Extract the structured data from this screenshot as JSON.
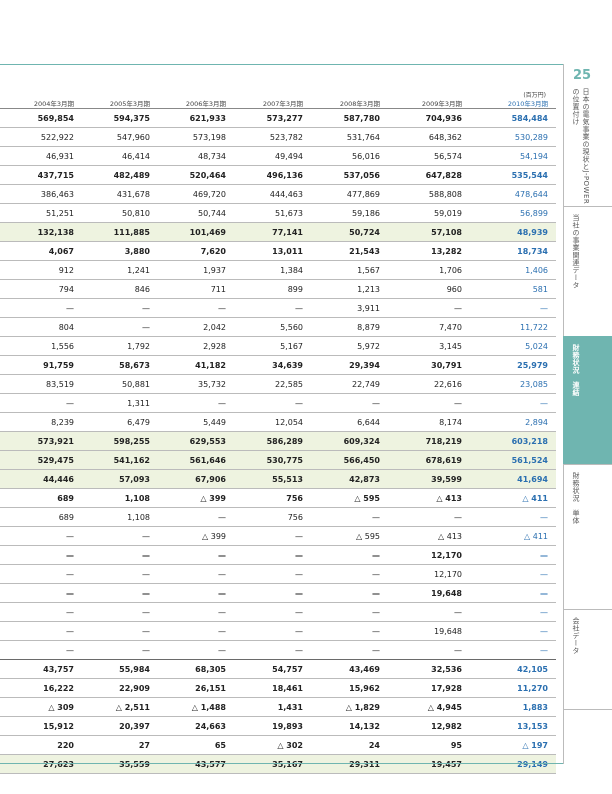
{
  "page_number": "25",
  "unit_label": "(百万円)",
  "sidebar": {
    "sections": [
      {
        "label": "日本の電気事業の現状とJ-POWERの位置付け",
        "active": false
      },
      {
        "label": "当社の事業関連データ",
        "active": false
      },
      {
        "label": "財務状況　連結",
        "active": true
      },
      {
        "label": "財務状況　単体",
        "active": false
      },
      {
        "label": "会社データ",
        "active": false
      }
    ]
  },
  "table": {
    "columns": [
      "2004年3月期",
      "2005年3月期",
      "2006年3月期",
      "2007年3月期",
      "2008年3月期",
      "2009年3月期",
      "2010年3月期"
    ],
    "rows": [
      {
        "style": "bold",
        "values": [
          "569,854",
          "594,375",
          "621,933",
          "573,277",
          "587,780",
          "704,936",
          "584,484"
        ]
      },
      {
        "style": "",
        "values": [
          "522,922",
          "547,960",
          "573,198",
          "523,782",
          "531,764",
          "648,362",
          "530,289"
        ]
      },
      {
        "style": "",
        "values": [
          "46,931",
          "46,414",
          "48,734",
          "49,494",
          "56,016",
          "56,574",
          "54,194"
        ]
      },
      {
        "style": "bold",
        "values": [
          "437,715",
          "482,489",
          "520,464",
          "496,136",
          "537,056",
          "647,828",
          "535,544"
        ]
      },
      {
        "style": "",
        "values": [
          "386,463",
          "431,678",
          "469,720",
          "444,463",
          "477,869",
          "588,808",
          "478,644"
        ]
      },
      {
        "style": "",
        "values": [
          "51,251",
          "50,810",
          "50,744",
          "51,673",
          "59,186",
          "59,019",
          "56,899"
        ]
      },
      {
        "style": "bold shade",
        "values": [
          "132,138",
          "111,885",
          "101,469",
          "77,141",
          "50,724",
          "57,108",
          "48,939"
        ]
      },
      {
        "style": "bold",
        "values": [
          "4,067",
          "3,880",
          "7,620",
          "13,011",
          "21,543",
          "13,282",
          "18,734"
        ]
      },
      {
        "style": "",
        "values": [
          "912",
          "1,241",
          "1,937",
          "1,384",
          "1,567",
          "1,706",
          "1,406"
        ]
      },
      {
        "style": "",
        "values": [
          "794",
          "846",
          "711",
          "899",
          "1,213",
          "960",
          "581"
        ]
      },
      {
        "style": "",
        "values": [
          "—",
          "—",
          "—",
          "—",
          "3,911",
          "—",
          "—"
        ]
      },
      {
        "style": "",
        "values": [
          "804",
          "—",
          "2,042",
          "5,560",
          "8,879",
          "7,470",
          "11,722"
        ]
      },
      {
        "style": "",
        "values": [
          "1,556",
          "1,792",
          "2,928",
          "5,167",
          "5,972",
          "3,145",
          "5,024"
        ]
      },
      {
        "style": "bold",
        "values": [
          "91,759",
          "58,673",
          "41,182",
          "34,639",
          "29,394",
          "30,791",
          "25,979"
        ]
      },
      {
        "style": "",
        "values": [
          "83,519",
          "50,881",
          "35,732",
          "22,585",
          "22,749",
          "22,616",
          "23,085"
        ]
      },
      {
        "style": "",
        "values": [
          "—",
          "1,311",
          "—",
          "—",
          "—",
          "—",
          "—"
        ]
      },
      {
        "style": "",
        "values": [
          "8,239",
          "6,479",
          "5,449",
          "12,054",
          "6,644",
          "8,174",
          "2,894"
        ]
      },
      {
        "style": "bold shade",
        "values": [
          "573,921",
          "598,255",
          "629,553",
          "586,289",
          "609,324",
          "718,219",
          "603,218"
        ]
      },
      {
        "style": "bold shade",
        "values": [
          "529,475",
          "541,162",
          "561,646",
          "530,775",
          "566,450",
          "678,619",
          "561,524"
        ]
      },
      {
        "style": "bold shade",
        "values": [
          "44,446",
          "57,093",
          "67,906",
          "55,513",
          "42,873",
          "39,599",
          "41,694"
        ]
      },
      {
        "style": "bold",
        "values": [
          "689",
          "1,108",
          "△ 399",
          "756",
          "△ 595",
          "△ 413",
          "△ 411"
        ]
      },
      {
        "style": "",
        "values": [
          "689",
          "1,108",
          "—",
          "756",
          "—",
          "—",
          "—"
        ]
      },
      {
        "style": "",
        "values": [
          "—",
          "—",
          "△ 399",
          "—",
          "△ 595",
          "△ 413",
          "△ 411"
        ]
      },
      {
        "style": "bold",
        "values": [
          "—",
          "—",
          "—",
          "—",
          "—",
          "12,170",
          "—"
        ]
      },
      {
        "style": "",
        "values": [
          "—",
          "—",
          "—",
          "—",
          "—",
          "12,170",
          "—"
        ]
      },
      {
        "style": "bold",
        "values": [
          "—",
          "—",
          "—",
          "—",
          "—",
          "19,648",
          "—"
        ]
      },
      {
        "style": "",
        "values": [
          "—",
          "—",
          "—",
          "—",
          "—",
          "—",
          "—"
        ]
      },
      {
        "style": "",
        "values": [
          "—",
          "—",
          "—",
          "—",
          "—",
          "19,648",
          "—"
        ]
      },
      {
        "style": "sep",
        "values": [
          "—",
          "—",
          "—",
          "—",
          "—",
          "—",
          "—"
        ]
      },
      {
        "style": "bold",
        "values": [
          "43,757",
          "55,984",
          "68,305",
          "54,757",
          "43,469",
          "32,536",
          "42,105"
        ]
      },
      {
        "style": "bold",
        "values": [
          "16,222",
          "22,909",
          "26,151",
          "18,461",
          "15,962",
          "17,928",
          "11,270"
        ]
      },
      {
        "style": "bold",
        "values": [
          "△ 309",
          "△ 2,511",
          "△ 1,488",
          "1,431",
          "△ 1,829",
          "△ 4,945",
          "1,883"
        ]
      },
      {
        "style": "bold",
        "values": [
          "15,912",
          "20,397",
          "24,663",
          "19,893",
          "14,132",
          "12,982",
          "13,153"
        ]
      },
      {
        "style": "bold",
        "values": [
          "220",
          "27",
          "65",
          "△ 302",
          "24",
          "95",
          "△ 197"
        ]
      },
      {
        "style": "bold shade",
        "values": [
          "27,623",
          "35,559",
          "43,577",
          "35,167",
          "29,311",
          "19,457",
          "29,149"
        ]
      }
    ]
  }
}
